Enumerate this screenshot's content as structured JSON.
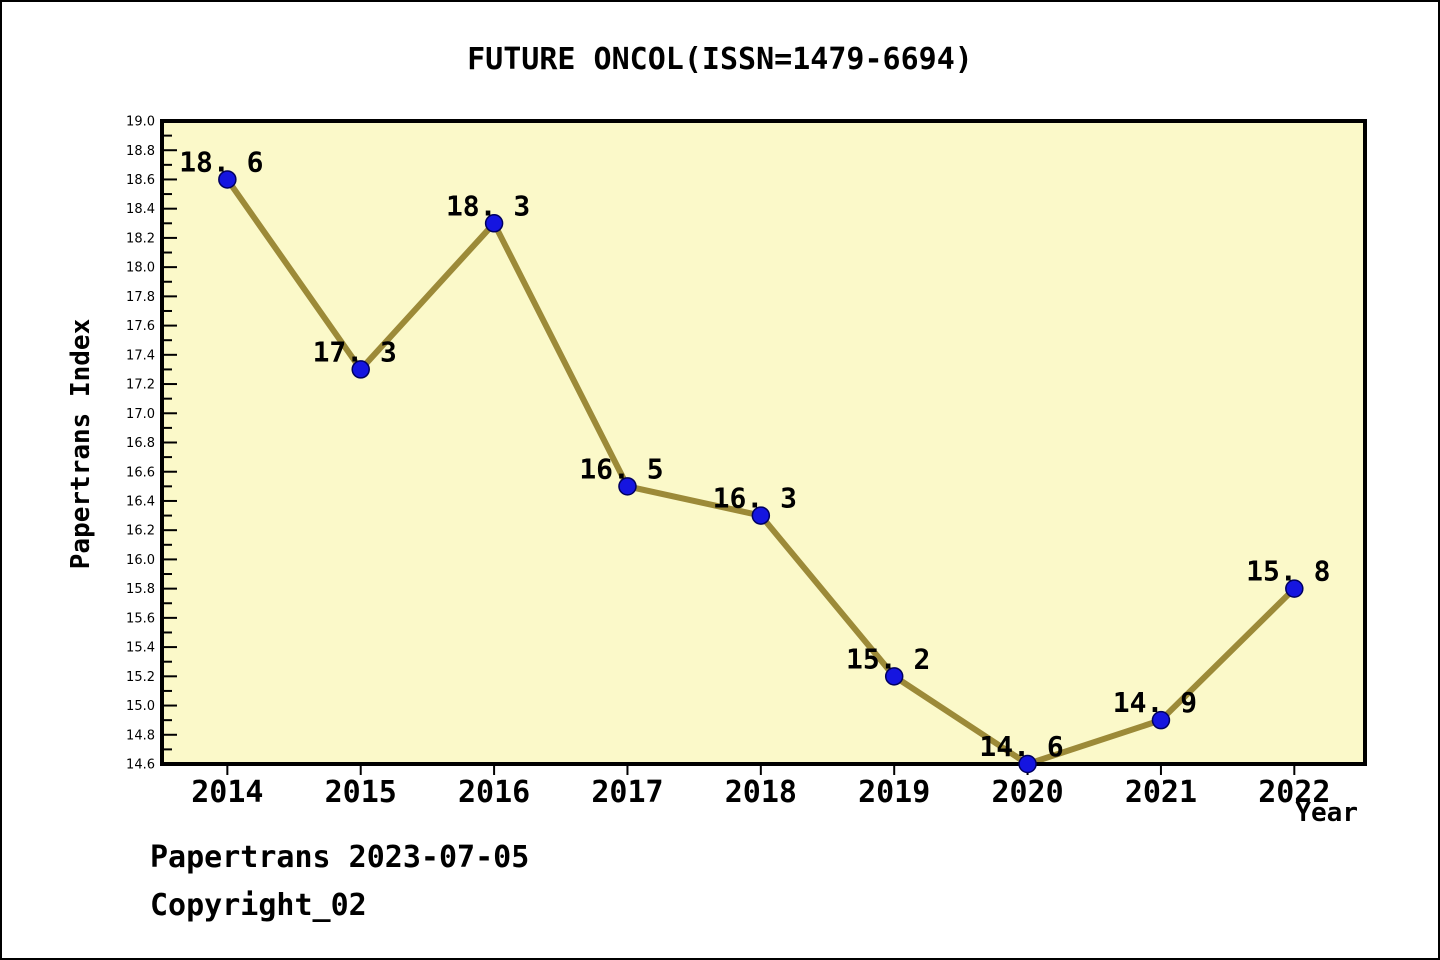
{
  "page": {
    "title": "FUTURE ONCOL(ISSN=1479-6694)"
  },
  "chart_data": {
    "type": "line",
    "title": "FUTURE ONCOL(ISSN=1479-6694)",
    "xlabel": "Year",
    "ylabel": "Papertrans Index",
    "x": [
      2014,
      2015,
      2016,
      2017,
      2018,
      2019,
      2020,
      2021,
      2022
    ],
    "series": [
      {
        "name": "Papertrans Index",
        "values": [
          18.6,
          17.3,
          18.3,
          16.5,
          16.3,
          15.2,
          14.6,
          14.9,
          15.8
        ],
        "point_labels": [
          "18. 6",
          "17. 3",
          "18. 3",
          "16. 5",
          "16. 3",
          "15. 2",
          "14. 6",
          "14. 9",
          "15. 8"
        ]
      }
    ],
    "x_tick_labels": [
      "2014",
      "2015",
      "2016",
      "2017",
      "2018",
      "2019",
      "2020",
      "2021",
      "2022"
    ],
    "y_tick_labels": [
      "19.0",
      "18.8",
      "18.6",
      "18.4",
      "18.2",
      "18.0",
      "17.8",
      "17.6",
      "17.4",
      "17.2",
      "17.0",
      "16.8",
      "16.6",
      "16.4",
      "16.2",
      "16.0",
      "15.8",
      "15.6",
      "15.4",
      "15.2",
      "15.0",
      "14.8",
      "14.6"
    ],
    "ylim": [
      14.6,
      19.0
    ],
    "xlim": [
      2013.51,
      2022.53
    ],
    "y_major_step": 0.2,
    "y_minor_step": 0.1,
    "grid": false,
    "legend": "none",
    "marker_style": "circle",
    "colors": {
      "plot_bg": "#fbf9c9",
      "line": "#9c8a38",
      "marker_fill": "#1515e0",
      "marker_edge": "#000060",
      "axis": "#000000",
      "text": "#000000",
      "outer_bg": "#ffffff"
    }
  },
  "footer": {
    "line1": "Papertrans 2023-07-05",
    "line2": "Copyright_02"
  }
}
